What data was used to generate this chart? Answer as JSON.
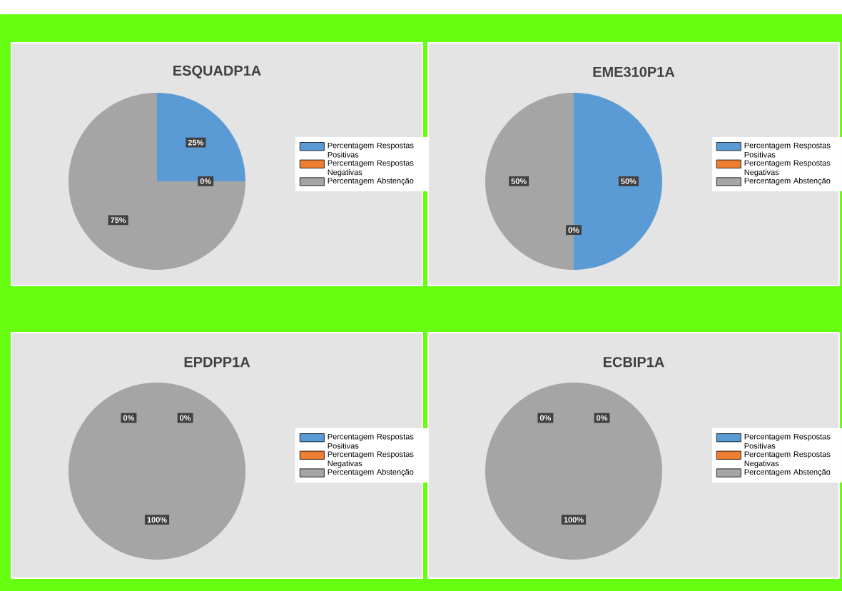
{
  "chart_data": [
    {
      "type": "pie",
      "title": "ESQUADP1A",
      "categories": [
        "Percentagem Respostas Positivas",
        "Percentagem Respostas Negativas",
        "Percentagem Abstenção"
      ],
      "values": [
        25,
        0,
        75
      ],
      "colors": [
        "#5b9bd5",
        "#ed7d31",
        "#a5a5a5"
      ],
      "value_labels": [
        "25%",
        "0%",
        "75%"
      ],
      "legend": "right"
    },
    {
      "type": "pie",
      "title": "EME310P1A",
      "categories": [
        "Percentagem Respostas Positivas",
        "Percentagem Respostas Negativas",
        "Percentagem Abstenção"
      ],
      "values": [
        50,
        0,
        50
      ],
      "colors": [
        "#5b9bd5",
        "#ed7d31",
        "#a5a5a5"
      ],
      "value_labels": [
        "50%",
        "0%",
        "50%"
      ],
      "legend": "right"
    },
    {
      "type": "pie",
      "title": "EPDPP1A",
      "categories": [
        "Percentagem Respostas Positivas",
        "Percentagem Respostas Negativas",
        "Percentagem Abstenção"
      ],
      "values": [
        0,
        0,
        100
      ],
      "colors": [
        "#5b9bd5",
        "#ed7d31",
        "#a5a5a5"
      ],
      "value_labels": [
        "0%",
        "0%",
        "100%"
      ],
      "legend": "right"
    },
    {
      "type": "pie",
      "title": "ECBIP1A",
      "categories": [
        "Percentagem Respostas Positivas",
        "Percentagem Respostas Negativas",
        "Percentagem Abstenção"
      ],
      "values": [
        0,
        0,
        100
      ],
      "colors": [
        "#5b9bd5",
        "#ed7d31",
        "#a5a5a5"
      ],
      "value_labels": [
        "0%",
        "0%",
        "100%"
      ],
      "legend": "right"
    }
  ]
}
